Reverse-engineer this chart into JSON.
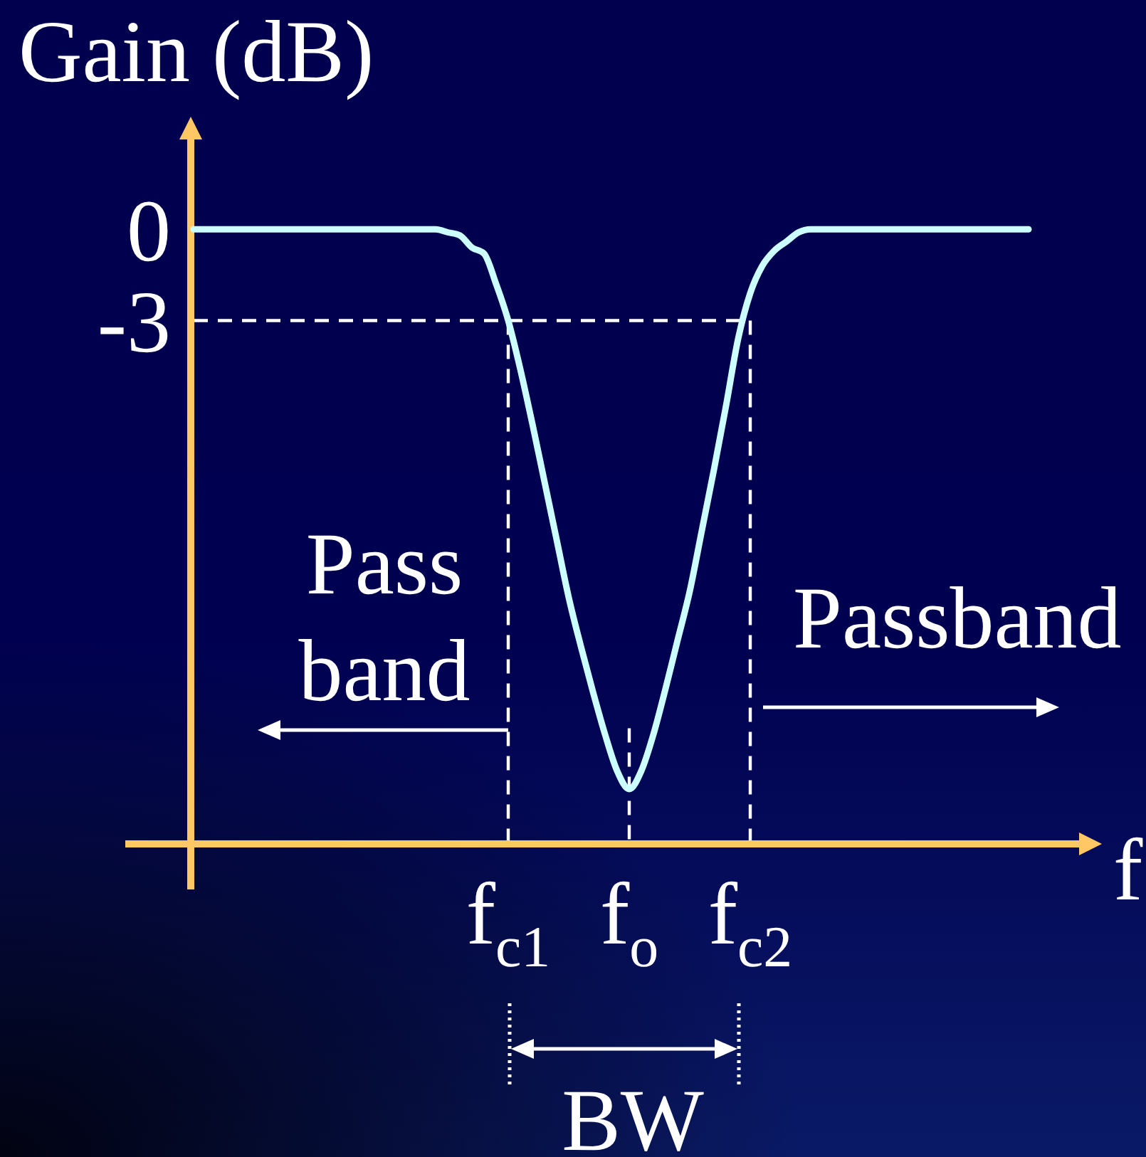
{
  "chart_data": {
    "type": "line",
    "ylabel": "Gain (dB)",
    "xlabel": "f",
    "categories": [
      null,
      null,
      null,
      null,
      null,
      null,
      null,
      null,
      null,
      null,
      null,
      null,
      null,
      null,
      null,
      null,
      null,
      null,
      null,
      null,
      null,
      null,
      null,
      null,
      null,
      null,
      "f$_{c1}$",
      null,
      null,
      null,
      null,
      null,
      null,
      null,
      null,
      null,
      "f$_{o}$",
      null,
      null,
      null,
      null,
      null,
      null,
      null,
      null,
      null,
      "f$_{c2}$",
      null,
      null,
      null,
      null,
      null,
      null,
      null,
      null,
      null,
      null,
      null,
      null,
      null,
      null,
      null,
      null,
      null,
      null,
      null,
      null,
      null,
      null,
      null
    ],
    "series": [
      {
        "color": "#ccffff",
        "values": [
          0,
          0,
          0,
          0,
          0,
          0,
          0,
          0,
          0,
          0,
          0,
          0,
          0,
          0,
          0,
          0,
          0,
          0,
          0,
          0,
          0,
          -0.1,
          -0.2,
          -0.6,
          -0.8,
          -1.8,
          -3,
          -4.6,
          -6.4,
          -8.3,
          -10.2,
          -12.1,
          -13.7,
          -15.2,
          -16.6,
          -17.8,
          -18.4,
          -17.8,
          -16.6,
          -15.1,
          -13.5,
          -11.9,
          -9.9,
          -7.9,
          -5.8,
          -3.6,
          -2.1,
          -1.2,
          -0.7,
          -0.4,
          -0.1,
          0,
          0,
          0,
          0,
          0,
          0,
          0,
          0,
          0,
          0,
          0,
          0,
          0,
          0,
          0,
          0,
          0,
          0,
          0
        ]
      }
    ],
    "ylim": [
      -20.2,
      3.7
    ],
    "yticks": [
      -3,
      0
    ],
    "ref_lines": [
      {
        "axis": "y",
        "value": -3,
        "color": "#ffffff",
        "line_style": "dashed"
      },
      {
        "axis": "x",
        "value": "f$_{c1}$",
        "color": "#ffffff",
        "line_style": "dashed"
      },
      {
        "axis": "x",
        "value": "f$_{o}$",
        "color": "#ffffff",
        "line_style": "dashed"
      },
      {
        "axis": "x",
        "value": "f$_{c2}$",
        "color": "#ffffff",
        "line_style": "dashed"
      }
    ],
    "annotations": [
      "Pass\nband",
      "Passband",
      "BW"
    ]
  }
}
